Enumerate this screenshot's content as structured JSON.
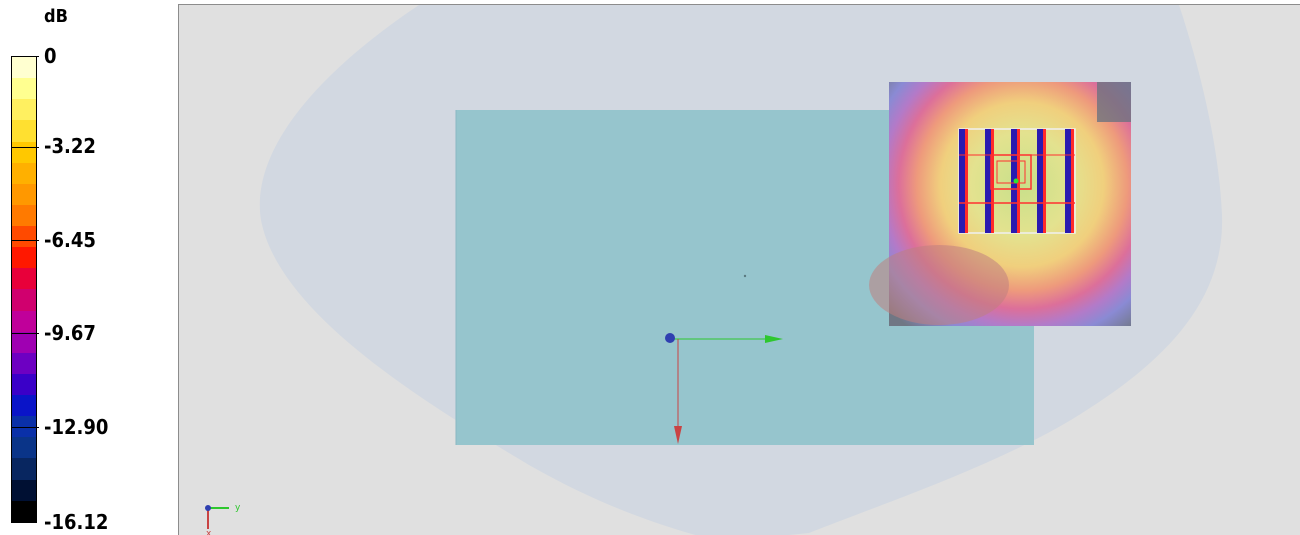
{
  "legend": {
    "unit": "dB",
    "ticks": [
      "0",
      "-3.22",
      "-6.45",
      "-9.67",
      "-12.90",
      "-16.12"
    ],
    "colors": [
      "#ffffd0",
      "#ffff90",
      "#fff060",
      "#ffe030",
      "#ffc800",
      "#ffb000",
      "#ff9800",
      "#ff7a00",
      "#ff4a00",
      "#ff1800",
      "#e8003a",
      "#d0006e",
      "#c0009a",
      "#9f00b2",
      "#6d00c2",
      "#3a00c8",
      "#0a14c8",
      "#0a30a8",
      "#0a3488",
      "#082660",
      "#001033",
      "#000000"
    ]
  },
  "viewport": {
    "background": "#e0e0e0",
    "body_color": "#d2d8e1",
    "plane_color": "#96c5cd",
    "axes": {
      "y_label": "y",
      "x_label": "x"
    }
  }
}
